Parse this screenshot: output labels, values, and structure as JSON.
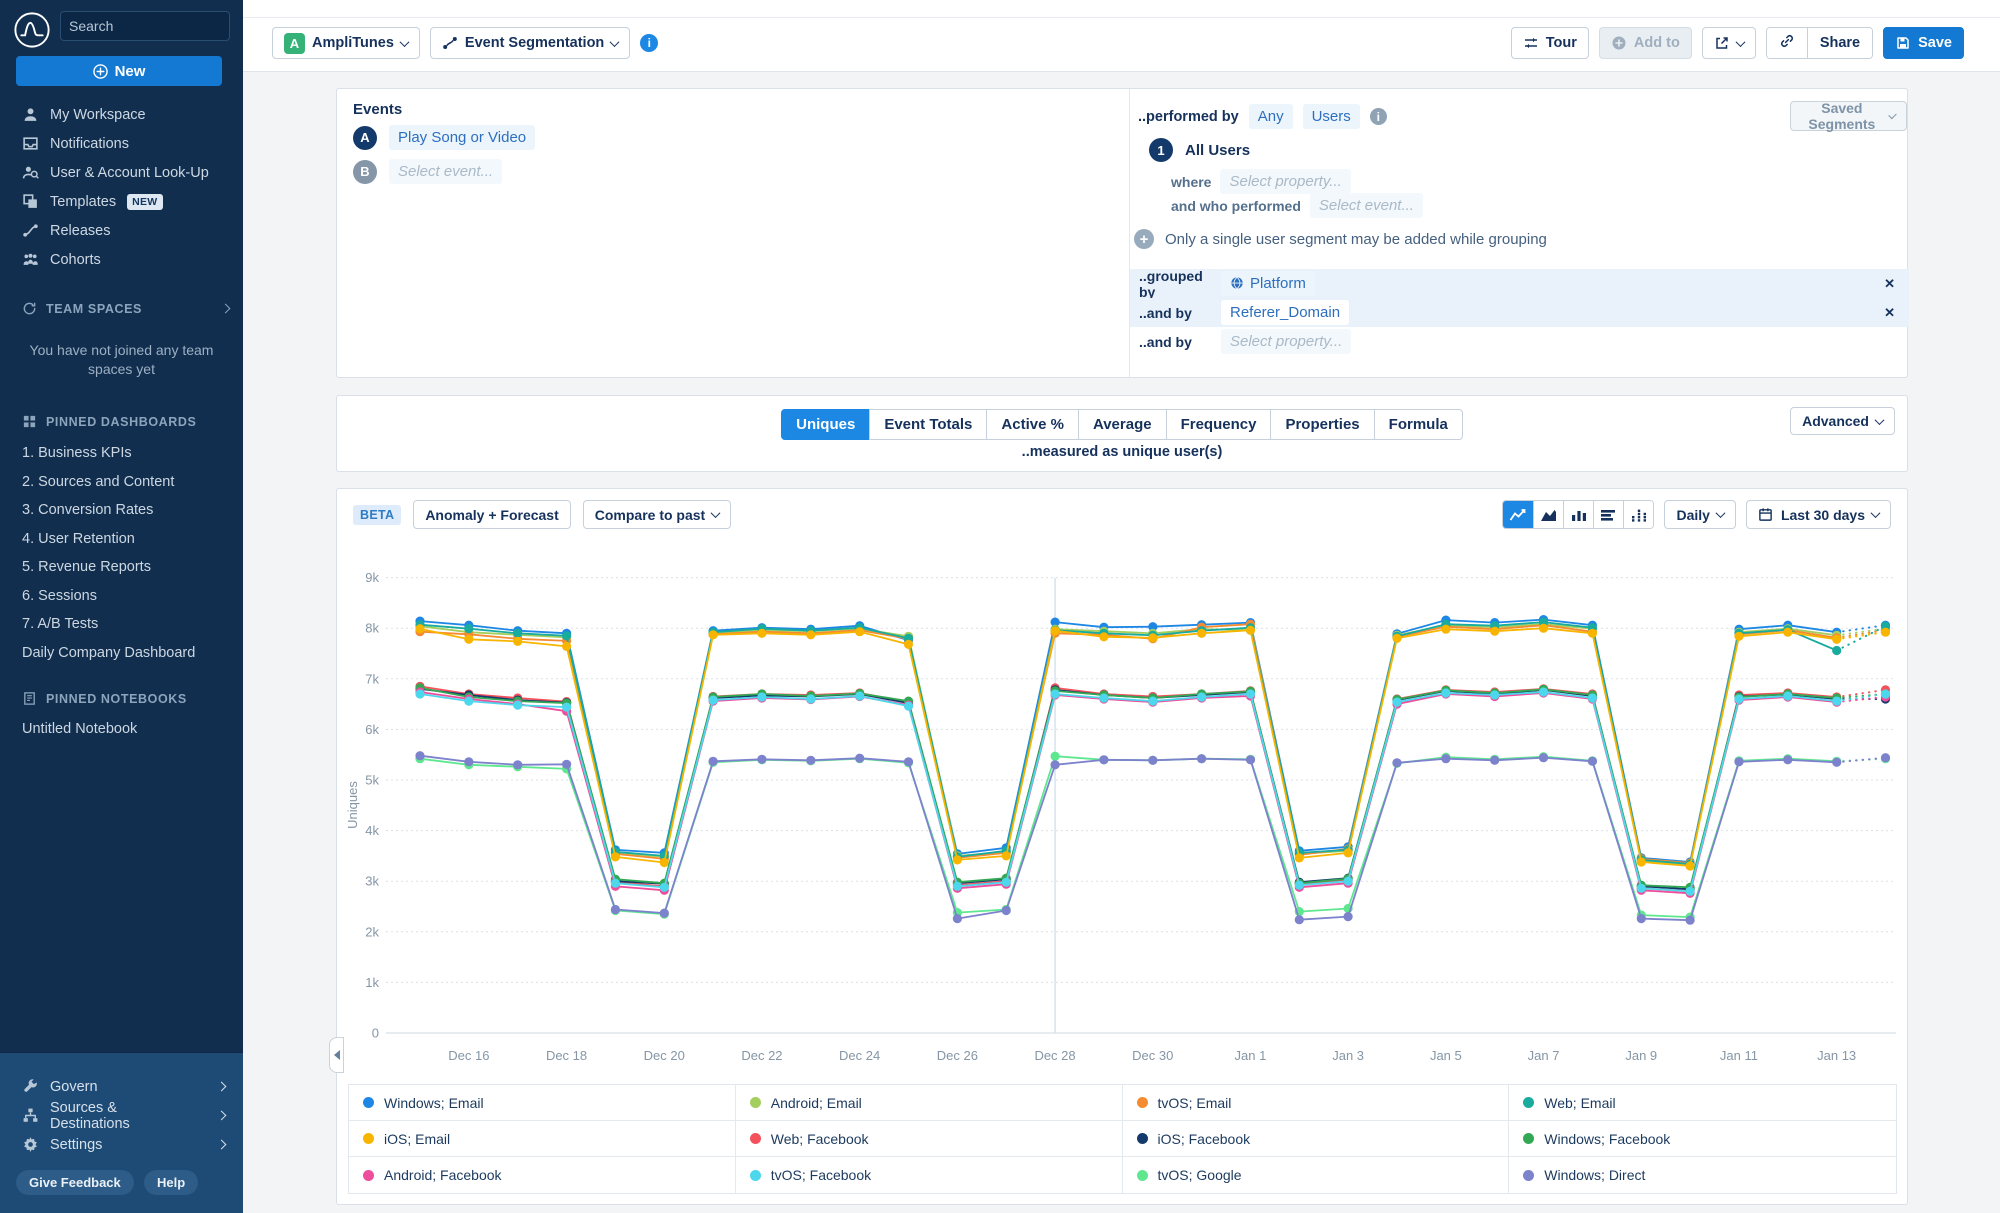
{
  "sidebar": {
    "search_placeholder": "Search",
    "new_label": "New",
    "nav": [
      {
        "label": "My Workspace",
        "icon": "user"
      },
      {
        "label": "Notifications",
        "icon": "inbox"
      },
      {
        "label": "User & Account Look-Up",
        "icon": "user-search"
      },
      {
        "label": "Templates",
        "icon": "templates",
        "badge": "NEW"
      },
      {
        "label": "Releases",
        "icon": "releases"
      },
      {
        "label": "Cohorts",
        "icon": "cohorts"
      }
    ],
    "team_spaces": {
      "header": "TEAM SPACES",
      "empty_line1": "You have not joined any team",
      "empty_line2": "spaces yet"
    },
    "pinned_dashboards": {
      "header": "PINNED DASHBOARDS",
      "items": [
        "1. Business KPIs",
        "2. Sources and Content",
        "3. Conversion Rates",
        "4. User Retention",
        "5. Revenue Reports",
        "6. Sessions",
        "7. A/B Tests",
        "Daily Company Dashboard"
      ]
    },
    "pinned_notebooks": {
      "header": "PINNED NOTEBOOKS",
      "items": [
        "Untitled Notebook"
      ]
    },
    "bottom_nav": [
      {
        "label": "Govern",
        "icon": "wrench"
      },
      {
        "label": "Sources & Destinations",
        "icon": "sitemap"
      },
      {
        "label": "Settings",
        "icon": "gear"
      }
    ],
    "feedback_label": "Give Feedback",
    "help_label": "Help"
  },
  "toolbar": {
    "project": "AmpliTunes",
    "project_initial": "A",
    "chart_type": "Event Segmentation",
    "tour": "Tour",
    "add_to": "Add to",
    "share": "Share",
    "save": "Save"
  },
  "events_panel": {
    "title": "Events",
    "rows": [
      {
        "badge": "A",
        "label": "Play Song or Video"
      },
      {
        "badge": "B",
        "placeholder": "Select event..."
      }
    ]
  },
  "segment_panel": {
    "performed_by": "..performed by",
    "any": "Any",
    "users": "Users",
    "saved_segments": "Saved Segments",
    "segment_number": "1",
    "segment_name": "All Users",
    "where_label": "where",
    "where_placeholder": "Select property...",
    "who_label": "and who performed",
    "who_placeholder": "Select event...",
    "grouping_note": "Only a single user segment may be added while grouping",
    "group_rows": [
      {
        "prefix": "..grouped by",
        "value": "Platform",
        "icon": "globe",
        "removable": true
      },
      {
        "prefix": "..and by",
        "value": "Referer_Domain",
        "removable": true
      },
      {
        "prefix": "..and by",
        "placeholder": "Select property...",
        "removable": false
      }
    ]
  },
  "measure_tabs": {
    "tabs": [
      "Uniques",
      "Event Totals",
      "Active %",
      "Average",
      "Frequency",
      "Properties",
      "Formula"
    ],
    "active": "Uniques",
    "caption": "..measured as unique user(s)",
    "advanced": "Advanced"
  },
  "chart_controls": {
    "beta": "BETA",
    "anomaly": "Anomaly + Forecast",
    "compare": "Compare to past",
    "interval": "Daily",
    "range": "Last 30 days"
  },
  "chart_data": {
    "type": "line",
    "ylabel": "Uniques",
    "ylim": [
      0,
      9000
    ],
    "y_ticks": [
      "0",
      "1k",
      "2k",
      "3k",
      "4k",
      "5k",
      "6k",
      "7k",
      "8k",
      "9k"
    ],
    "grid": true,
    "legend_position": "bottom",
    "annotation_x": "Dec 28",
    "last_segment_dashed": true,
    "x": [
      "Dec 15",
      "Dec 16",
      "Dec 17",
      "Dec 18",
      "Dec 19",
      "Dec 20",
      "Dec 21",
      "Dec 22",
      "Dec 23",
      "Dec 24",
      "Dec 25",
      "Dec 26",
      "Dec 27",
      "Dec 28",
      "Dec 29",
      "Dec 30",
      "Dec 31",
      "Jan 1",
      "Jan 2",
      "Jan 3",
      "Jan 4",
      "Jan 5",
      "Jan 6",
      "Jan 7",
      "Jan 8",
      "Jan 9",
      "Jan 10",
      "Jan 11",
      "Jan 12",
      "Jan 13",
      "Jan 14"
    ],
    "series": [
      {
        "name": "Windows; Email",
        "color": "#1e87e5",
        "values": [
          8140,
          8060,
          7950,
          7900,
          3620,
          3560,
          7950,
          8010,
          7980,
          8050,
          7760,
          3540,
          3660,
          8120,
          8020,
          8030,
          8070,
          8110,
          3600,
          3680,
          7890,
          8160,
          8110,
          8170,
          8060,
          3460,
          3380,
          7980,
          8060,
          7920,
          8060
        ]
      },
      {
        "name": "Android; Email",
        "color": "#a4cf5e",
        "values": [
          8040,
          7920,
          7870,
          7820,
          3560,
          3480,
          7900,
          7960,
          7940,
          7990,
          7840,
          3500,
          3580,
          7980,
          7940,
          7900,
          7980,
          7960,
          3540,
          3600,
          7860,
          8060,
          8020,
          8080,
          7990,
          3400,
          3330,
          7920,
          7990,
          7860,
          7990
        ]
      },
      {
        "name": "tvOS; Email",
        "color": "#f58b31",
        "values": [
          7930,
          7880,
          7790,
          7750,
          3540,
          3440,
          7880,
          7930,
          7900,
          7960,
          7790,
          3460,
          3560,
          7900,
          7870,
          7790,
          8020,
          8080,
          3520,
          3640,
          7830,
          8030,
          7980,
          8060,
          7930,
          3440,
          3360,
          7880,
          7960,
          7810,
          7960
        ]
      },
      {
        "name": "Web; Email",
        "color": "#18ab9e",
        "values": [
          8070,
          7990,
          7900,
          7850,
          3580,
          3500,
          7920,
          7990,
          7950,
          8010,
          7800,
          3480,
          3600,
          7960,
          7900,
          7860,
          7950,
          8010,
          3560,
          3620,
          7840,
          8080,
          8050,
          8120,
          8010,
          3420,
          3340,
          7900,
          7970,
          7560,
          8040
        ]
      },
      {
        "name": "iOS; Email",
        "color": "#f7b500",
        "values": [
          7990,
          7780,
          7740,
          7640,
          3480,
          3370,
          7870,
          7900,
          7870,
          7930,
          7680,
          3420,
          3500,
          7950,
          7830,
          7810,
          7900,
          7960,
          3460,
          3560,
          7800,
          7980,
          7940,
          8000,
          7900,
          3380,
          3300,
          7840,
          7920,
          7780,
          7920
        ]
      },
      {
        "name": "Web; Facebook",
        "color": "#f4515c",
        "values": [
          6850,
          6700,
          6620,
          6550,
          2980,
          2900,
          6650,
          6700,
          6680,
          6720,
          6540,
          2920,
          3000,
          6820,
          6700,
          6650,
          6700,
          6760,
          2940,
          3020,
          6600,
          6780,
          6740,
          6800,
          6700,
          2860,
          2800,
          6680,
          6720,
          6640,
          6780
        ]
      },
      {
        "name": "iOS; Facebook",
        "color": "#14396b",
        "values": [
          6800,
          6680,
          6580,
          6530,
          3000,
          2950,
          6620,
          6670,
          6650,
          6700,
          6520,
          2960,
          3040,
          6780,
          6680,
          6620,
          6680,
          6740,
          2980,
          3060,
          6580,
          6760,
          6700,
          6780,
          6660,
          2900,
          2840,
          6650,
          6690,
          6600,
          6600
        ]
      },
      {
        "name": "Windows; Facebook",
        "color": "#33a854",
        "values": [
          6820,
          6640,
          6560,
          6520,
          3040,
          2960,
          6640,
          6700,
          6660,
          6710,
          6560,
          2980,
          3060,
          6760,
          6680,
          6620,
          6700,
          6750,
          2960,
          3050,
          6590,
          6770,
          6720,
          6790,
          6680,
          2920,
          2880,
          6640,
          6700,
          6620,
          6700
        ]
      },
      {
        "name": "Android; Facebook",
        "color": "#ee4d9c",
        "values": [
          6740,
          6600,
          6500,
          6360,
          2900,
          2820,
          6560,
          6620,
          6590,
          6650,
          6480,
          2860,
          2940,
          6680,
          6600,
          6540,
          6620,
          6660,
          2880,
          2960,
          6500,
          6700,
          6650,
          6720,
          6600,
          2820,
          2760,
          6580,
          6640,
          6540,
          6640
        ]
      },
      {
        "name": "tvOS; Facebook",
        "color": "#4dd7ec",
        "values": [
          6700,
          6560,
          6480,
          6440,
          2960,
          2880,
          6580,
          6640,
          6600,
          6660,
          6460,
          2900,
          2980,
          6700,
          6620,
          6560,
          6640,
          6700,
          2920,
          3000,
          6540,
          6720,
          6680,
          6740,
          6620,
          2860,
          2800,
          6600,
          6660,
          6560,
          6700
        ]
      },
      {
        "name": "tvOS; Google",
        "color": "#5fe790",
        "values": [
          5420,
          5300,
          5260,
          5220,
          2420,
          2350,
          5350,
          5400,
          5380,
          5420,
          5340,
          2380,
          2440,
          5470,
          5400,
          5390,
          5420,
          5410,
          2400,
          2460,
          5330,
          5450,
          5410,
          5460,
          5380,
          2330,
          2290,
          5380,
          5420,
          5370,
          5420
        ]
      },
      {
        "name": "Windows; Direct",
        "color": "#7d82cc",
        "values": [
          5480,
          5360,
          5300,
          5310,
          2440,
          2370,
          5370,
          5410,
          5390,
          5430,
          5360,
          2260,
          2420,
          5300,
          5400,
          5390,
          5420,
          5400,
          2240,
          2300,
          5340,
          5420,
          5390,
          5440,
          5370,
          2260,
          2230,
          5360,
          5400,
          5350,
          5440
        ]
      }
    ]
  }
}
